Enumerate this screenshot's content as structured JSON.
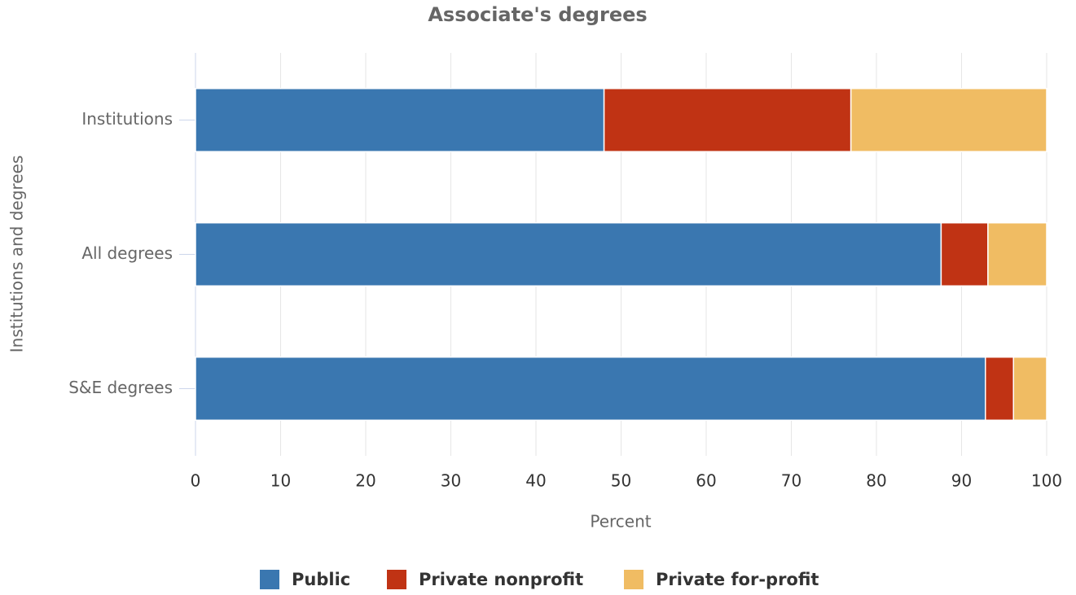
{
  "chart_data": {
    "type": "stacked_barh",
    "title": "Associate's degrees",
    "xlabel": "Percent",
    "ylabel": "Institutions and degrees",
    "categories": [
      "Institutions",
      "All degrees",
      "S&E degrees"
    ],
    "series": [
      {
        "name": "Public",
        "color": "#3a77b0",
        "values": [
          48,
          87.6,
          92.8
        ]
      },
      {
        "name": "Private nonprofit",
        "color": "#c03314",
        "values": [
          29,
          5.5,
          3.3
        ]
      },
      {
        "name": "Private for-profit",
        "color": "#f0bc63",
        "values": [
          23,
          6.9,
          3.9
        ]
      }
    ],
    "xlim": [
      0,
      100
    ],
    "xticks": [
      0,
      10,
      20,
      30,
      40,
      50,
      60,
      70,
      80,
      90,
      100
    ],
    "grid": true,
    "legend": "bottom"
  }
}
